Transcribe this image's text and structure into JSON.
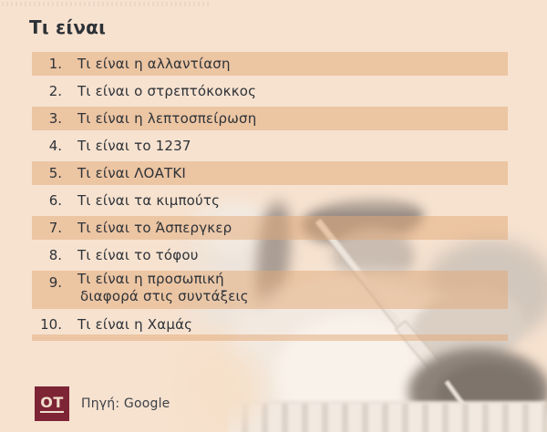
{
  "title": "Τι είναι",
  "list": {
    "items": [
      {
        "rank": "1.",
        "text": "Τι είναι η αλλαντίαση",
        "highlighted": true
      },
      {
        "rank": "2.",
        "text": "Τι είναι ο στρεπτόκοκκος",
        "highlighted": false
      },
      {
        "rank": "3.",
        "text": "Τι είναι η λεπτοσπείρωση",
        "highlighted": true
      },
      {
        "rank": "4.",
        "text": "Τι είναι το 1237",
        "highlighted": false
      },
      {
        "rank": "5.",
        "text": "Τι είναι ΛΟΑΤΚΙ",
        "highlighted": true
      },
      {
        "rank": "6.",
        "text": "Τι είναι τα κιμπούτς",
        "highlighted": false
      },
      {
        "rank": "7.",
        "text": "Τι είναι το Άσπεργκερ",
        "highlighted": true
      },
      {
        "rank": "8.",
        "text": "Τι είναι το τόφου",
        "highlighted": false
      },
      {
        "rank": "9.",
        "text": "Τι είναι η προσωπική",
        "text_line2": "διαφορά στις συντάξεις",
        "highlighted": true
      },
      {
        "rank": "10.",
        "text": "Τι είναι η Χαμάς",
        "highlighted": false
      }
    ]
  },
  "footer": {
    "logo_text": "OT",
    "source_label": "Πηγή: Google"
  },
  "colors": {
    "background": "#f7e2d0",
    "row_highlight": "#ecc5a4",
    "text": "#2d3237",
    "logo_background": "#7d2435",
    "logo_text": "#f0decb"
  },
  "chart_data": {
    "type": "table",
    "title": "Τι είναι",
    "columns": [
      "rank",
      "query"
    ],
    "rows": [
      [
        1,
        "Τι είναι η αλλαντίαση"
      ],
      [
        2,
        "Τι είναι ο στρεπτόκοκκος"
      ],
      [
        3,
        "Τι είναι η λεπτοσπείρωση"
      ],
      [
        4,
        "Τι είναι το 1237"
      ],
      [
        5,
        "Τι είναι ΛΟΑΤΚΙ"
      ],
      [
        6,
        "Τι είναι τα κιμπούτς"
      ],
      [
        7,
        "Τι είναι το Άσπεργκερ"
      ],
      [
        8,
        "Τι είναι το τόφου"
      ],
      [
        9,
        "Τι είναι η προσωπική διαφορά στις συντάξεις"
      ],
      [
        10,
        "Τι είναι η Χαμάς"
      ]
    ],
    "source": "Google"
  }
}
